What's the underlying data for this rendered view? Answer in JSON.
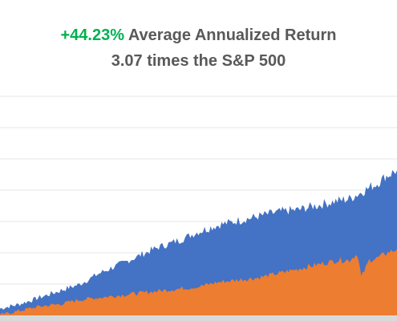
{
  "title": {
    "highlight": "+44.23%",
    "line1_rest": " Average Annualized Return",
    "line2": "3.07 times the S&P 500"
  },
  "colors": {
    "highlight": "#00b050",
    "title_text": "#595959",
    "series_top": "#4472c4",
    "series_bottom": "#ed7d31",
    "grid": "#e6e6e6"
  },
  "chart_data": {
    "type": "area",
    "title": "+44.23% Average Annualized Return 3.07 times the S&P 500",
    "grid": true,
    "legend": "none",
    "xlim": [
      0,
      1
    ],
    "ylim": [
      0,
      1
    ],
    "series": [
      {
        "x": [
          0,
          0.05,
          0.1,
          0.15,
          0.2,
          0.25,
          0.3,
          0.35,
          0.4,
          0.45,
          0.5,
          0.55,
          0.6,
          0.65,
          0.7,
          0.75,
          0.8,
          0.85,
          0.88,
          0.9,
          0.93,
          0.95,
          0.97,
          1.0
        ],
        "values": [
          0.03,
          0.05,
          0.08,
          0.11,
          0.14,
          0.19,
          0.23,
          0.27,
          0.31,
          0.34,
          0.38,
          0.41,
          0.43,
          0.45,
          0.47,
          0.48,
          0.5,
          0.52,
          0.53,
          0.55,
          0.58,
          0.6,
          0.63,
          0.66
        ]
      },
      {
        "x": [
          0,
          0.05,
          0.1,
          0.15,
          0.2,
          0.25,
          0.3,
          0.35,
          0.4,
          0.45,
          0.5,
          0.55,
          0.6,
          0.65,
          0.7,
          0.75,
          0.8,
          0.85,
          0.88,
          0.9,
          0.91,
          0.93,
          0.95,
          0.97,
          1.0
        ],
        "values": [
          0.0,
          0.02,
          0.04,
          0.05,
          0.07,
          0.08,
          0.09,
          0.1,
          0.11,
          0.12,
          0.13,
          0.15,
          0.16,
          0.17,
          0.19,
          0.21,
          0.23,
          0.25,
          0.25,
          0.28,
          0.17,
          0.25,
          0.26,
          0.28,
          0.3
        ]
      }
    ]
  }
}
